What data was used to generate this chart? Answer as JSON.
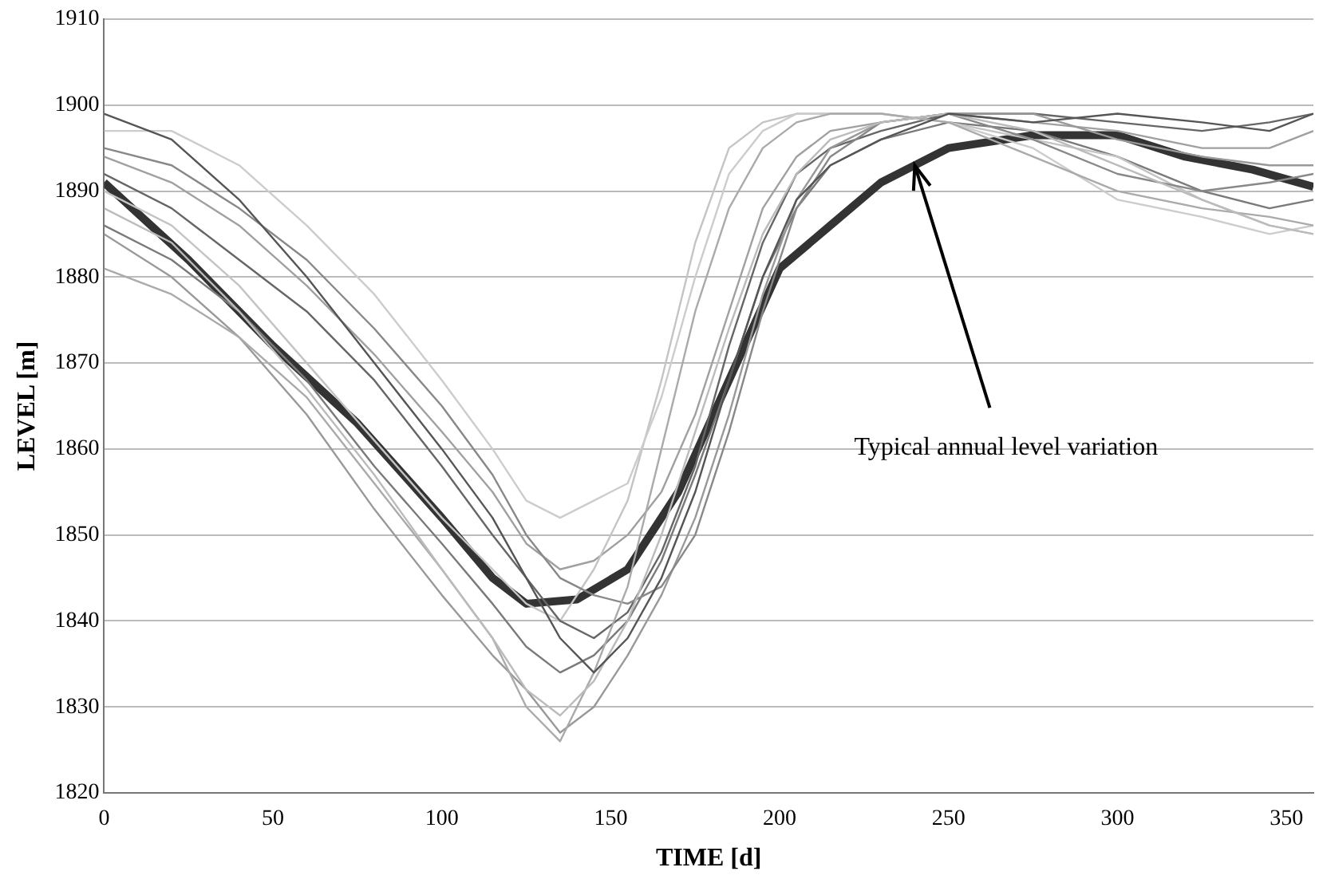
{
  "chart_data": {
    "type": "line",
    "xlabel": "TIME [d]",
    "ylabel": "LEVEL [m]",
    "x": [
      0,
      20,
      40,
      60,
      80,
      100,
      115,
      125,
      135,
      145,
      155,
      165,
      175,
      185,
      195,
      205,
      215,
      230,
      250,
      275,
      300,
      325,
      345,
      358
    ],
    "xlim": [
      0,
      358
    ],
    "xticks": [
      0,
      50,
      100,
      150,
      200,
      250,
      300,
      350
    ],
    "ylim": [
      1820,
      1910
    ],
    "yticks": [
      1820,
      1830,
      1840,
      1850,
      1860,
      1870,
      1880,
      1890,
      1900,
      1910
    ],
    "grid": "y",
    "legend": false,
    "marker": "none",
    "line_style": "solid",
    "annotations": [
      {
        "text": "Typical annual level variation",
        "x": 240,
        "y": 1893
      }
    ],
    "series": [
      {
        "color": "#555555",
        "values": [
          1899,
          1896,
          1889,
          1880,
          1870,
          1860,
          1852,
          1845,
          1838,
          1834,
          1838,
          1845,
          1855,
          1868,
          1880,
          1889,
          1893,
          1896,
          1899,
          1898,
          1899,
          1898,
          1897,
          1899
        ]
      },
      {
        "color": "#bbbbbb",
        "values": [
          1888,
          1884,
          1876,
          1867,
          1857,
          1846,
          1838,
          1832,
          1829,
          1833,
          1840,
          1850,
          1862,
          1874,
          1885,
          1892,
          1896,
          1898,
          1899,
          1897,
          1893,
          1889,
          1886,
          1885
        ]
      },
      {
        "color": "#aaaaaa",
        "values": [
          1881,
          1878,
          1873,
          1866,
          1856,
          1846,
          1838,
          1830,
          1826,
          1834,
          1844,
          1860,
          1876,
          1888,
          1895,
          1898,
          1899,
          1899,
          1898,
          1894,
          1890,
          1888,
          1887,
          1886
        ]
      },
      {
        "color": "#888888",
        "values": [
          1895,
          1893,
          1888,
          1882,
          1874,
          1865,
          1857,
          1850,
          1845,
          1843,
          1842,
          1844,
          1850,
          1862,
          1876,
          1888,
          1894,
          1898,
          1899,
          1896,
          1892,
          1890,
          1891,
          1892
        ]
      },
      {
        "color": "#cccccc",
        "values": [
          1897,
          1897,
          1893,
          1886,
          1878,
          1868,
          1860,
          1854,
          1852,
          1854,
          1856,
          1866,
          1880,
          1892,
          1897,
          1899,
          1899,
          1899,
          1898,
          1895,
          1889,
          1887,
          1885,
          1886
        ]
      },
      {
        "color": "#999999",
        "values": [
          1885,
          1880,
          1873,
          1864,
          1853,
          1843,
          1836,
          1832,
          1827,
          1830,
          1836,
          1843,
          1852,
          1864,
          1878,
          1889,
          1895,
          1898,
          1899,
          1899,
          1896,
          1894,
          1893,
          1893
        ]
      },
      {
        "color": "#666666",
        "values": [
          1892,
          1888,
          1882,
          1876,
          1868,
          1858,
          1850,
          1845,
          1840,
          1838,
          1841,
          1848,
          1858,
          1872,
          1884,
          1892,
          1895,
          1897,
          1899,
          1899,
          1898,
          1897,
          1898,
          1899
        ]
      },
      {
        "color": "#c4c4c4",
        "values": [
          1890,
          1886,
          1879,
          1870,
          1861,
          1852,
          1846,
          1842,
          1840,
          1846,
          1854,
          1868,
          1884,
          1895,
          1898,
          1899,
          1899,
          1899,
          1898,
          1896,
          1894,
          1889,
          1886,
          1885
        ]
      },
      {
        "color": "#a0a0a0",
        "values": [
          1894,
          1891,
          1886,
          1879,
          1871,
          1862,
          1855,
          1849,
          1846,
          1847,
          1850,
          1855,
          1864,
          1876,
          1888,
          1894,
          1897,
          1898,
          1899,
          1898,
          1897,
          1895,
          1895,
          1897
        ]
      },
      {
        "color": "#7a7a7a",
        "values": [
          1886,
          1882,
          1876,
          1868,
          1858,
          1849,
          1842,
          1837,
          1834,
          1836,
          1840,
          1847,
          1857,
          1868,
          1880,
          1888,
          1893,
          1896,
          1898,
          1897,
          1894,
          1890,
          1888,
          1889
        ]
      },
      {
        "color": "#333333",
        "x": [
          0,
          25,
          50,
          75,
          100,
          115,
          125,
          140,
          155,
          170,
          185,
          200,
          215,
          230,
          250,
          275,
          300,
          320,
          340,
          358
        ],
        "values": [
          1891,
          1882,
          1872,
          1863,
          1852,
          1845,
          1842,
          1842.5,
          1846,
          1855,
          1868,
          1881,
          1886,
          1891,
          1895,
          1896.5,
          1896.5,
          1894,
          1892.5,
          1890.5
        ]
      }
    ]
  }
}
